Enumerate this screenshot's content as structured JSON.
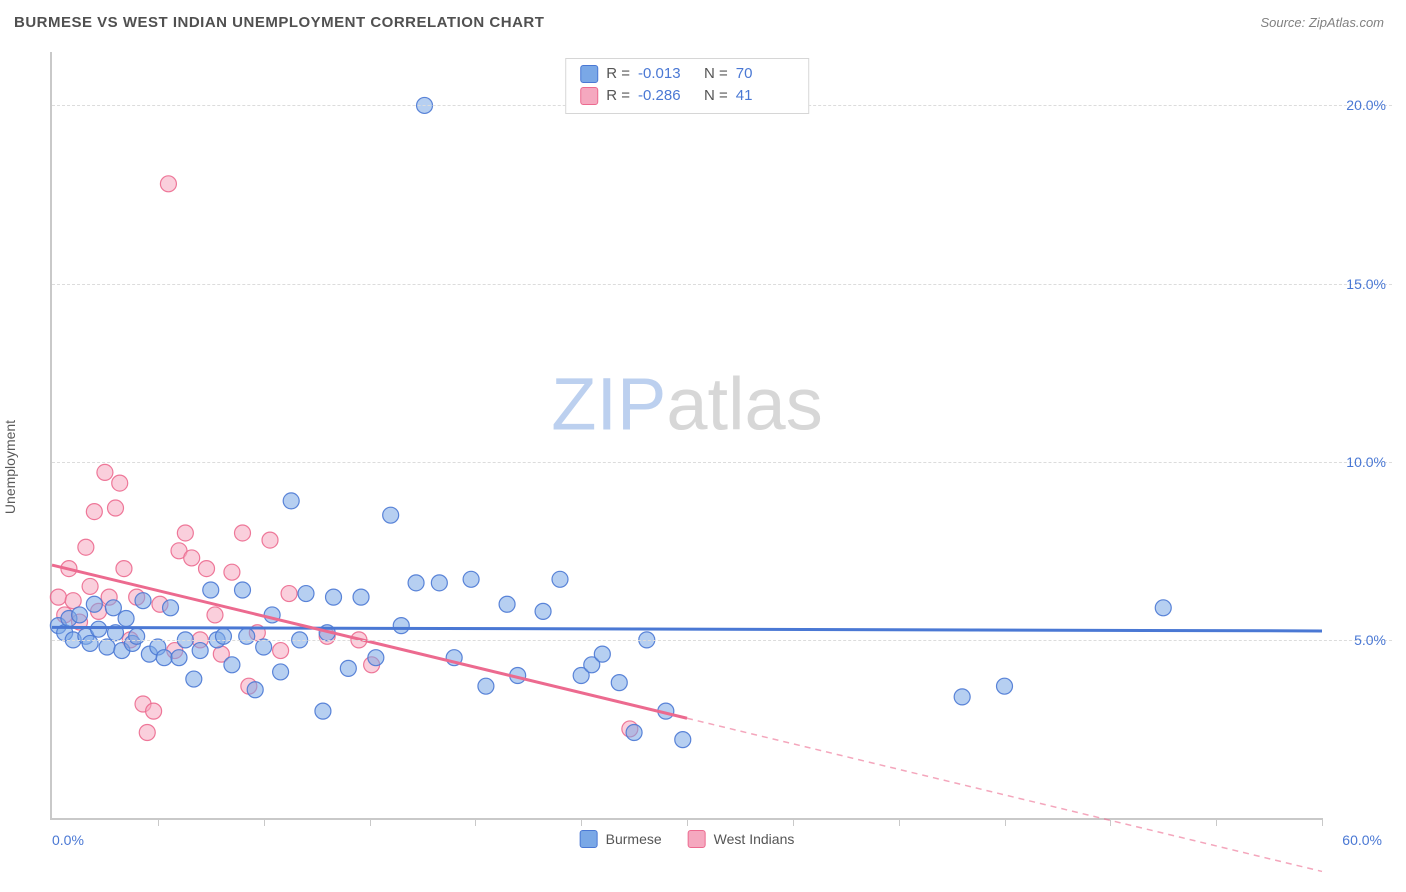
{
  "header": {
    "title": "BURMESE VS WEST INDIAN UNEMPLOYMENT CORRELATION CHART",
    "source": "Source: ZipAtlas.com"
  },
  "ylabel": "Unemployment",
  "watermark": {
    "zip": "ZIP",
    "rest": "atlas"
  },
  "chart": {
    "type": "scatter",
    "xlim": [
      0,
      60
    ],
    "ylim": [
      0,
      21.5
    ],
    "x_ticks_minor": [
      5,
      10,
      15,
      20,
      25,
      30,
      35,
      40,
      45,
      50,
      55,
      60
    ],
    "y_ticks": [
      5,
      10,
      15,
      20
    ],
    "y_tick_labels": [
      "5.0%",
      "10.0%",
      "15.0%",
      "20.0%"
    ],
    "x_label_start": "0.0%",
    "x_label_end": "60.0%",
    "grid_color": "#dcdcdc",
    "axis_color": "#c9c9c9",
    "background_color": "#ffffff",
    "marker_radius": 8,
    "marker_opacity": 0.55,
    "marker_stroke_opacity": 0.9,
    "line_width": 3,
    "series": [
      {
        "name": "Burmese",
        "color": "#7aa8e6",
        "stroke": "#4a78d4",
        "R": "-0.013",
        "N": "70",
        "trend": {
          "y_at_x0": 5.35,
          "y_at_x60": 5.25,
          "x_solid_end": 60
        },
        "points": [
          [
            0.3,
            5.4
          ],
          [
            0.6,
            5.2
          ],
          [
            0.8,
            5.6
          ],
          [
            1.0,
            5.0
          ],
          [
            1.3,
            5.7
          ],
          [
            1.6,
            5.1
          ],
          [
            1.8,
            4.9
          ],
          [
            2.0,
            6.0
          ],
          [
            2.2,
            5.3
          ],
          [
            2.6,
            4.8
          ],
          [
            2.9,
            5.9
          ],
          [
            3.0,
            5.2
          ],
          [
            3.3,
            4.7
          ],
          [
            3.5,
            5.6
          ],
          [
            3.8,
            4.9
          ],
          [
            4.0,
            5.1
          ],
          [
            4.3,
            6.1
          ],
          [
            4.6,
            4.6
          ],
          [
            5.0,
            4.8
          ],
          [
            5.3,
            4.5
          ],
          [
            5.6,
            5.9
          ],
          [
            6.0,
            4.5
          ],
          [
            6.3,
            5.0
          ],
          [
            6.7,
            3.9
          ],
          [
            7.0,
            4.7
          ],
          [
            7.5,
            6.4
          ],
          [
            7.8,
            5.0
          ],
          [
            8.1,
            5.1
          ],
          [
            8.5,
            4.3
          ],
          [
            9.0,
            6.4
          ],
          [
            9.2,
            5.1
          ],
          [
            9.6,
            3.6
          ],
          [
            10.0,
            4.8
          ],
          [
            10.4,
            5.7
          ],
          [
            10.8,
            4.1
          ],
          [
            11.3,
            8.9
          ],
          [
            11.7,
            5.0
          ],
          [
            12.0,
            6.3
          ],
          [
            12.8,
            3.0
          ],
          [
            13.0,
            5.2
          ],
          [
            13.3,
            6.2
          ],
          [
            14.0,
            4.2
          ],
          [
            14.6,
            6.2
          ],
          [
            15.3,
            4.5
          ],
          [
            16.0,
            8.5
          ],
          [
            16.5,
            5.4
          ],
          [
            17.2,
            6.6
          ],
          [
            17.6,
            20.0
          ],
          [
            18.3,
            6.6
          ],
          [
            19.0,
            4.5
          ],
          [
            19.8,
            6.7
          ],
          [
            20.5,
            3.7
          ],
          [
            21.5,
            6.0
          ],
          [
            22.0,
            4.0
          ],
          [
            23.2,
            5.8
          ],
          [
            24.0,
            6.7
          ],
          [
            25.0,
            4.0
          ],
          [
            25.5,
            4.3
          ],
          [
            26.0,
            4.6
          ],
          [
            26.8,
            3.8
          ],
          [
            27.5,
            2.4
          ],
          [
            28.1,
            5.0
          ],
          [
            29.0,
            3.0
          ],
          [
            29.8,
            2.2
          ],
          [
            43.0,
            3.4
          ],
          [
            45.0,
            3.7
          ],
          [
            52.5,
            5.9
          ]
        ]
      },
      {
        "name": "West Indians",
        "color": "#f5a8bf",
        "stroke": "#ec6a8f",
        "R": "-0.286",
        "N": "41",
        "trend": {
          "y_at_x0": 7.1,
          "y_at_x60": -1.5,
          "x_solid_end": 30
        },
        "points": [
          [
            0.3,
            6.2
          ],
          [
            0.6,
            5.7
          ],
          [
            0.8,
            7.0
          ],
          [
            1.0,
            6.1
          ],
          [
            1.3,
            5.5
          ],
          [
            1.6,
            7.6
          ],
          [
            1.8,
            6.5
          ],
          [
            2.0,
            8.6
          ],
          [
            2.2,
            5.8
          ],
          [
            2.5,
            9.7
          ],
          [
            2.7,
            6.2
          ],
          [
            3.0,
            8.7
          ],
          [
            3.2,
            9.4
          ],
          [
            3.4,
            7.0
          ],
          [
            3.7,
            5.0
          ],
          [
            4.0,
            6.2
          ],
          [
            4.3,
            3.2
          ],
          [
            4.5,
            2.4
          ],
          [
            4.8,
            3.0
          ],
          [
            5.1,
            6.0
          ],
          [
            5.5,
            17.8
          ],
          [
            5.8,
            4.7
          ],
          [
            6.0,
            7.5
          ],
          [
            6.3,
            8.0
          ],
          [
            6.6,
            7.3
          ],
          [
            7.0,
            5.0
          ],
          [
            7.3,
            7.0
          ],
          [
            7.7,
            5.7
          ],
          [
            8.0,
            4.6
          ],
          [
            8.5,
            6.9
          ],
          [
            9.0,
            8.0
          ],
          [
            9.3,
            3.7
          ],
          [
            9.7,
            5.2
          ],
          [
            10.3,
            7.8
          ],
          [
            10.8,
            4.7
          ],
          [
            11.2,
            6.3
          ],
          [
            13.0,
            5.1
          ],
          [
            14.5,
            5.0
          ],
          [
            15.1,
            4.3
          ],
          [
            27.3,
            2.5
          ]
        ]
      }
    ]
  },
  "legend_top": {
    "rows": [
      {
        "series_idx": 0,
        "labelR": "R =",
        "labelN": "N ="
      },
      {
        "series_idx": 1,
        "labelR": "R =",
        "labelN": "N ="
      }
    ]
  },
  "legend_bottom": [
    "Burmese",
    "West Indians"
  ]
}
